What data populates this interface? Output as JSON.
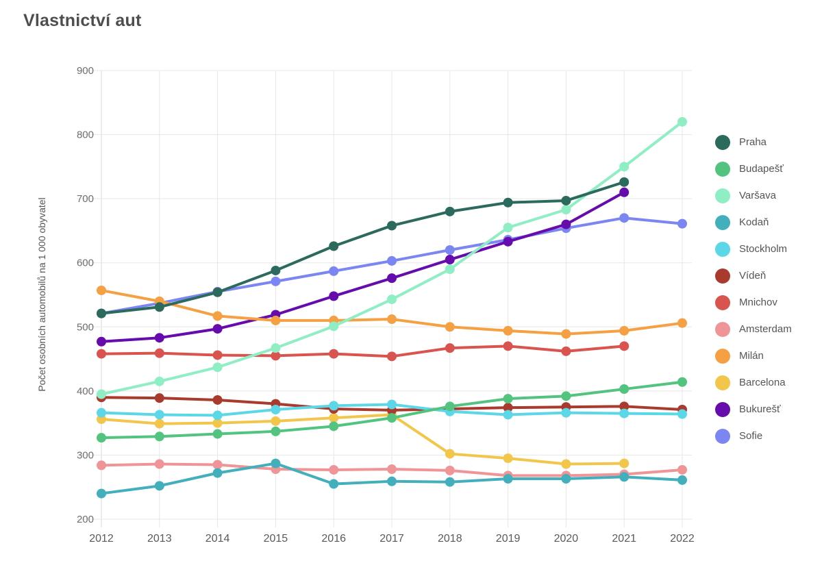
{
  "title": "Vlastnictví aut",
  "y_axis": {
    "label": "Počet osobních automobilů na 1 000 obyvatel",
    "min": 200,
    "max": 900,
    "ticks": [
      900,
      800,
      700,
      600,
      500,
      400,
      300,
      200
    ]
  },
  "x_axis": {
    "ticks": [
      "2012",
      "2013",
      "2014",
      "2015",
      "2016",
      "2017",
      "2018",
      "2019",
      "2020",
      "2021",
      "2022"
    ]
  },
  "grid_color": "#e7e7e7",
  "tick_label_color": "#6e6e6e",
  "chart_data": {
    "type": "line",
    "title": "Vlastnictví aut",
    "ylabel": "Počet osobních automobilů na 1 000 obyvatel",
    "xlabel": "",
    "x": [
      2012,
      2013,
      2014,
      2015,
      2016,
      2017,
      2018,
      2019,
      2020,
      2021,
      2022
    ],
    "ylim": [
      200,
      900
    ],
    "grid": true,
    "legend_position": "right",
    "marker": "circle",
    "series": [
      {
        "name": "Praha",
        "color": "#2b6a5c",
        "values": [
          521,
          531,
          554,
          588,
          626,
          658,
          680,
          694,
          697,
          726,
          null
        ]
      },
      {
        "name": "Budapešť",
        "color": "#53c47f",
        "values": [
          327,
          329,
          333,
          337,
          345,
          358,
          376,
          388,
          392,
          403,
          414
        ]
      },
      {
        "name": "Varšava",
        "color": "#8feec4",
        "values": [
          395,
          415,
          437,
          467,
          501,
          543,
          590,
          655,
          683,
          750,
          820
        ]
      },
      {
        "name": "Kodaň",
        "color": "#43afbd",
        "values": [
          240,
          252,
          272,
          287,
          255,
          259,
          258,
          263,
          263,
          266,
          261
        ]
      },
      {
        "name": "Stockholm",
        "color": "#5cd7e7",
        "values": [
          366,
          363,
          362,
          371,
          377,
          379,
          368,
          363,
          366,
          365,
          364
        ]
      },
      {
        "name": "Vídeň",
        "color": "#a93a2e",
        "values": [
          390,
          389,
          386,
          380,
          372,
          370,
          372,
          374,
          375,
          376,
          371
        ]
      },
      {
        "name": "Mnichov",
        "color": "#d9534f",
        "values": [
          458,
          459,
          456,
          455,
          458,
          454,
          467,
          470,
          462,
          470,
          null
        ]
      },
      {
        "name": "Amsterdam",
        "color": "#ef9597",
        "values": [
          284,
          286,
          285,
          278,
          277,
          278,
          276,
          268,
          268,
          270,
          277
        ]
      },
      {
        "name": "Milán",
        "color": "#f5a043",
        "values": [
          557,
          540,
          517,
          510,
          510,
          512,
          500,
          494,
          489,
          494,
          506
        ]
      },
      {
        "name": "Barcelona",
        "color": "#f2c64b",
        "values": [
          356,
          349,
          350,
          353,
          358,
          363,
          302,
          295,
          286,
          287,
          null
        ]
      },
      {
        "name": "Bukurešť",
        "color": "#660bac",
        "values": [
          477,
          483,
          497,
          519,
          548,
          576,
          605,
          633,
          660,
          710,
          null
        ]
      },
      {
        "name": "Sofie",
        "color": "#7c86f2",
        "values": [
          521,
          537,
          555,
          571,
          587,
          603,
          620,
          636,
          654,
          670,
          661
        ]
      }
    ]
  }
}
